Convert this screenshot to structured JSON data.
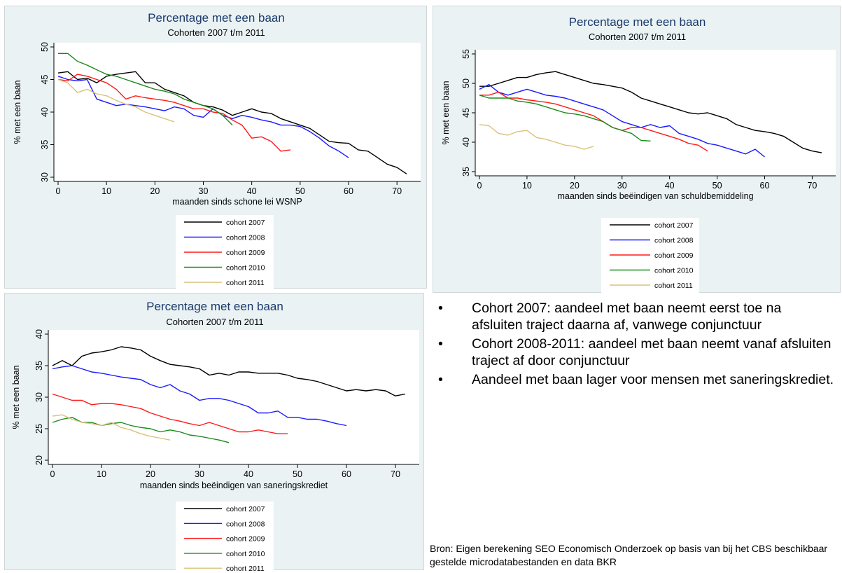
{
  "legend_colors": {
    "cohort 2007": "#000000",
    "cohort 2008": "#1a1aff",
    "cohort 2009": "#ff1a1a",
    "cohort 2010": "#1a8a1a",
    "cohort 2011": "#d9c27a"
  },
  "notes": {
    "bullets": [
      "Cohort 2007: aandeel met baan neemt eerst toe na afsluiten traject daarna af, vanwege conjunctuur",
      "Cohort 2008-2011: aandeel met baan neemt vanaf afsluiten traject af door conjunctuur",
      "Aandeel met baan lager voor mensen met saneringskrediet."
    ],
    "source": "Bron: Eigen berekening SEO Economisch Onderzoek op basis van bij het CBS beschikbaar gestelde microdatabestanden en data BKR"
  },
  "chart_data": [
    {
      "type": "line",
      "title": "Percentage met een baan",
      "subtitle": "Cohorten 2007 t/m 2011",
      "xlabel": "maanden sinds schone lei WSNP",
      "ylabel": "% met een baan",
      "xlim": [
        0,
        72
      ],
      "ylim": [
        30,
        50
      ],
      "xticks": [
        0,
        10,
        20,
        30,
        40,
        50,
        60,
        70
      ],
      "yticks": [
        30,
        35,
        40,
        45,
        50
      ],
      "grid": false,
      "legend_position": "bottom",
      "series": [
        {
          "name": "cohort 2007",
          "x": [
            0,
            2,
            4,
            6,
            8,
            10,
            12,
            14,
            16,
            18,
            20,
            22,
            24,
            26,
            28,
            30,
            32,
            34,
            36,
            38,
            40,
            42,
            44,
            46,
            48,
            50,
            52,
            54,
            56,
            58,
            60,
            62,
            64,
            66,
            68,
            70,
            72
          ],
          "y": [
            46,
            46.2,
            45,
            45.2,
            44.5,
            45.5,
            45.8,
            46,
            46.2,
            44.5,
            44.5,
            43.5,
            43,
            42.5,
            41.5,
            41,
            40.8,
            40.3,
            39.5,
            40,
            40.5,
            40,
            39.8,
            39,
            38.5,
            38,
            37.5,
            36.5,
            35.5,
            35.3,
            35.2,
            34.2,
            34,
            33,
            32,
            31.5,
            30.5
          ]
        },
        {
          "name": "cohort 2008",
          "x": [
            0,
            2,
            4,
            6,
            8,
            10,
            12,
            14,
            16,
            18,
            20,
            22,
            24,
            26,
            28,
            30,
            32,
            34,
            36,
            38,
            40,
            42,
            44,
            46,
            48,
            50,
            52,
            54,
            56,
            58,
            60
          ],
          "y": [
            45.5,
            45,
            44.8,
            45,
            42,
            41.5,
            41,
            41.2,
            41,
            40.8,
            40.5,
            40.2,
            40.8,
            40.5,
            39.5,
            39.2,
            40.5,
            39.5,
            39,
            39.5,
            39.2,
            38.8,
            38.5,
            38,
            38,
            37.8,
            37,
            36,
            34.8,
            34,
            33
          ]
        },
        {
          "name": "cohort 2009",
          "x": [
            0,
            2,
            4,
            6,
            8,
            10,
            12,
            14,
            16,
            18,
            20,
            22,
            24,
            26,
            28,
            30,
            32,
            34,
            36,
            38,
            40,
            42,
            44,
            46,
            48
          ],
          "y": [
            45,
            44.8,
            45.8,
            45.5,
            45,
            44.5,
            43.5,
            42,
            42.5,
            42.2,
            42,
            41.8,
            41.5,
            41,
            40.5,
            40.5,
            40,
            39.8,
            38.8,
            38,
            36,
            36.2,
            35.5,
            34,
            34.2
          ]
        },
        {
          "name": "cohort 2010",
          "x": [
            0,
            2,
            4,
            6,
            8,
            10,
            12,
            14,
            16,
            18,
            20,
            22,
            24,
            26,
            28,
            30,
            32,
            34,
            36
          ],
          "y": [
            49,
            49,
            47.8,
            47.2,
            46.5,
            45.8,
            45.5,
            45,
            44.5,
            44,
            43.5,
            43.2,
            42.8,
            42,
            41.5,
            41,
            40.5,
            39.5,
            38
          ]
        },
        {
          "name": "cohort 2011",
          "x": [
            0,
            2,
            4,
            6,
            8,
            10,
            12,
            14,
            16,
            18,
            20,
            22,
            24
          ],
          "y": [
            45,
            44.5,
            43,
            43.5,
            42.8,
            42.5,
            41.8,
            41.2,
            40.8,
            40,
            39.5,
            39,
            38.5
          ]
        }
      ]
    },
    {
      "type": "line",
      "title": "Percentage met een baan",
      "subtitle": "Cohorten 2007 t/m 2011",
      "xlabel": "maanden sinds beëindigen van schuldbemiddeling",
      "ylabel": "% met een baan",
      "xlim": [
        0,
        72
      ],
      "ylim": [
        35,
        55
      ],
      "xticks": [
        0,
        10,
        20,
        30,
        40,
        50,
        60,
        70
      ],
      "yticks": [
        35,
        40,
        45,
        50,
        55
      ],
      "grid": false,
      "legend_position": "bottom",
      "series": [
        {
          "name": "cohort 2007",
          "x": [
            0,
            2,
            4,
            6,
            8,
            10,
            12,
            14,
            16,
            18,
            20,
            22,
            24,
            26,
            28,
            30,
            32,
            34,
            36,
            38,
            40,
            42,
            44,
            46,
            48,
            50,
            52,
            54,
            56,
            58,
            60,
            62,
            64,
            66,
            68,
            70,
            72
          ],
          "y": [
            49.5,
            49.5,
            50,
            50.5,
            51,
            51,
            51.5,
            51.8,
            52,
            51.5,
            51,
            50.5,
            50,
            49.8,
            49.5,
            49.2,
            48.5,
            47.5,
            47,
            46.5,
            46,
            45.5,
            45,
            44.8,
            45,
            44.5,
            44,
            43,
            42.5,
            42,
            41.8,
            41.5,
            41,
            40,
            39,
            38.5,
            38.2
          ]
        },
        {
          "name": "cohort 2008",
          "x": [
            0,
            2,
            4,
            6,
            8,
            10,
            12,
            14,
            16,
            18,
            20,
            22,
            24,
            26,
            28,
            30,
            32,
            34,
            36,
            38,
            40,
            42,
            44,
            46,
            48,
            50,
            52,
            54,
            56,
            58,
            60
          ],
          "y": [
            49,
            49.8,
            48.5,
            48,
            48.5,
            49,
            48.5,
            48,
            47.8,
            47.5,
            47,
            46.5,
            46,
            45.5,
            44.5,
            43.5,
            43,
            42.5,
            43,
            42.5,
            42.8,
            41.5,
            41,
            40.5,
            39.8,
            39.5,
            39,
            38.5,
            38,
            38.8,
            37.5
          ]
        },
        {
          "name": "cohort 2009",
          "x": [
            0,
            2,
            4,
            6,
            8,
            10,
            12,
            14,
            16,
            18,
            20,
            22,
            24,
            26,
            28,
            30,
            32,
            34,
            36,
            38,
            40,
            42,
            44,
            46,
            48
          ],
          "y": [
            48,
            48,
            48.5,
            47.5,
            47.5,
            47.2,
            47,
            46.8,
            46.5,
            46,
            45.5,
            45,
            44.5,
            43.5,
            42.5,
            42,
            42.5,
            42.5,
            42,
            41.5,
            41,
            40.5,
            39.8,
            39.5,
            38.5
          ]
        },
        {
          "name": "cohort 2010",
          "x": [
            0,
            2,
            4,
            6,
            8,
            10,
            12,
            14,
            16,
            18,
            20,
            22,
            24,
            26,
            28,
            30,
            32,
            34,
            36
          ],
          "y": [
            48,
            47.5,
            47.5,
            47.5,
            47,
            46.8,
            46.5,
            46,
            45.5,
            45,
            44.8,
            44.5,
            44,
            43.5,
            42.5,
            42,
            41.5,
            40.3,
            40.2
          ]
        },
        {
          "name": "cohort 2011",
          "x": [
            0,
            2,
            4,
            6,
            8,
            10,
            12,
            14,
            16,
            18,
            20,
            22,
            24
          ],
          "y": [
            43,
            42.8,
            41.5,
            41.2,
            41.8,
            42,
            40.8,
            40.5,
            40,
            39.5,
            39.3,
            38.8,
            39.3
          ]
        }
      ]
    },
    {
      "type": "line",
      "title": "Percentage met een baan",
      "subtitle": "Cohorten 2007 t/m 2011",
      "xlabel": "maanden sinds beëindigen van saneringskrediet",
      "ylabel": "% met een baan",
      "xlim": [
        0,
        72
      ],
      "ylim": [
        20,
        40
      ],
      "xticks": [
        0,
        10,
        20,
        30,
        40,
        50,
        60,
        70
      ],
      "yticks": [
        20,
        25,
        30,
        35,
        40
      ],
      "grid": false,
      "legend_position": "bottom",
      "series": [
        {
          "name": "cohort 2007",
          "x": [
            0,
            2,
            4,
            6,
            8,
            10,
            12,
            14,
            16,
            18,
            20,
            22,
            24,
            26,
            28,
            30,
            32,
            34,
            36,
            38,
            40,
            42,
            44,
            46,
            48,
            50,
            52,
            54,
            56,
            58,
            60,
            62,
            64,
            66,
            68,
            70,
            72
          ],
          "y": [
            35,
            35.8,
            35,
            36.5,
            37,
            37.2,
            37.5,
            38,
            37.8,
            37.5,
            36.5,
            35.8,
            35.2,
            35,
            34.8,
            34.5,
            33.5,
            33.8,
            33.5,
            34,
            34,
            33.8,
            33.8,
            33.8,
            33.5,
            33,
            32.8,
            32.5,
            32,
            31.5,
            31,
            31.2,
            31,
            31.2,
            31,
            30.2,
            30.5
          ]
        },
        {
          "name": "cohort 2008",
          "x": [
            0,
            2,
            4,
            6,
            8,
            10,
            12,
            14,
            16,
            18,
            20,
            22,
            24,
            26,
            28,
            30,
            32,
            34,
            36,
            38,
            40,
            42,
            44,
            46,
            48,
            50,
            52,
            54,
            56,
            58,
            60
          ],
          "y": [
            34.5,
            34.8,
            35,
            34.5,
            34,
            33.8,
            33.5,
            33.2,
            33,
            32.8,
            32,
            31.5,
            32,
            31,
            30.5,
            29.5,
            29.8,
            29.8,
            29.5,
            29,
            28.5,
            27.5,
            27.5,
            27.8,
            26.8,
            26.8,
            26.5,
            26.5,
            26.2,
            25.8,
            25.5
          ]
        },
        {
          "name": "cohort 2009",
          "x": [
            0,
            2,
            4,
            6,
            8,
            10,
            12,
            14,
            16,
            18,
            20,
            22,
            24,
            26,
            28,
            30,
            32,
            34,
            36,
            38,
            40,
            42,
            44,
            46,
            48
          ],
          "y": [
            30.5,
            30,
            29.5,
            29.5,
            28.8,
            29,
            29,
            28.8,
            28.5,
            28.2,
            27.5,
            27,
            26.5,
            26.2,
            25.8,
            25.5,
            26,
            25.5,
            25,
            24.5,
            24.5,
            24.8,
            24.5,
            24.2,
            24.2
          ]
        },
        {
          "name": "cohort 2010",
          "x": [
            0,
            2,
            4,
            6,
            8,
            10,
            12,
            14,
            16,
            18,
            20,
            22,
            24,
            26,
            28,
            30,
            32,
            34,
            36
          ],
          "y": [
            26,
            26.5,
            26.8,
            26,
            26,
            25.5,
            25.8,
            26,
            25.5,
            25.2,
            25,
            24.5,
            24.8,
            24.5,
            24,
            23.8,
            23.5,
            23.2,
            22.8
          ]
        },
        {
          "name": "cohort 2011",
          "x": [
            0,
            2,
            4,
            6,
            8,
            10,
            12,
            14,
            16,
            18,
            20,
            22,
            24
          ],
          "y": [
            27,
            27.2,
            26.5,
            26,
            25.8,
            25.5,
            26,
            25.2,
            24.8,
            24.2,
            23.8,
            23.5,
            23.2
          ]
        }
      ]
    }
  ]
}
